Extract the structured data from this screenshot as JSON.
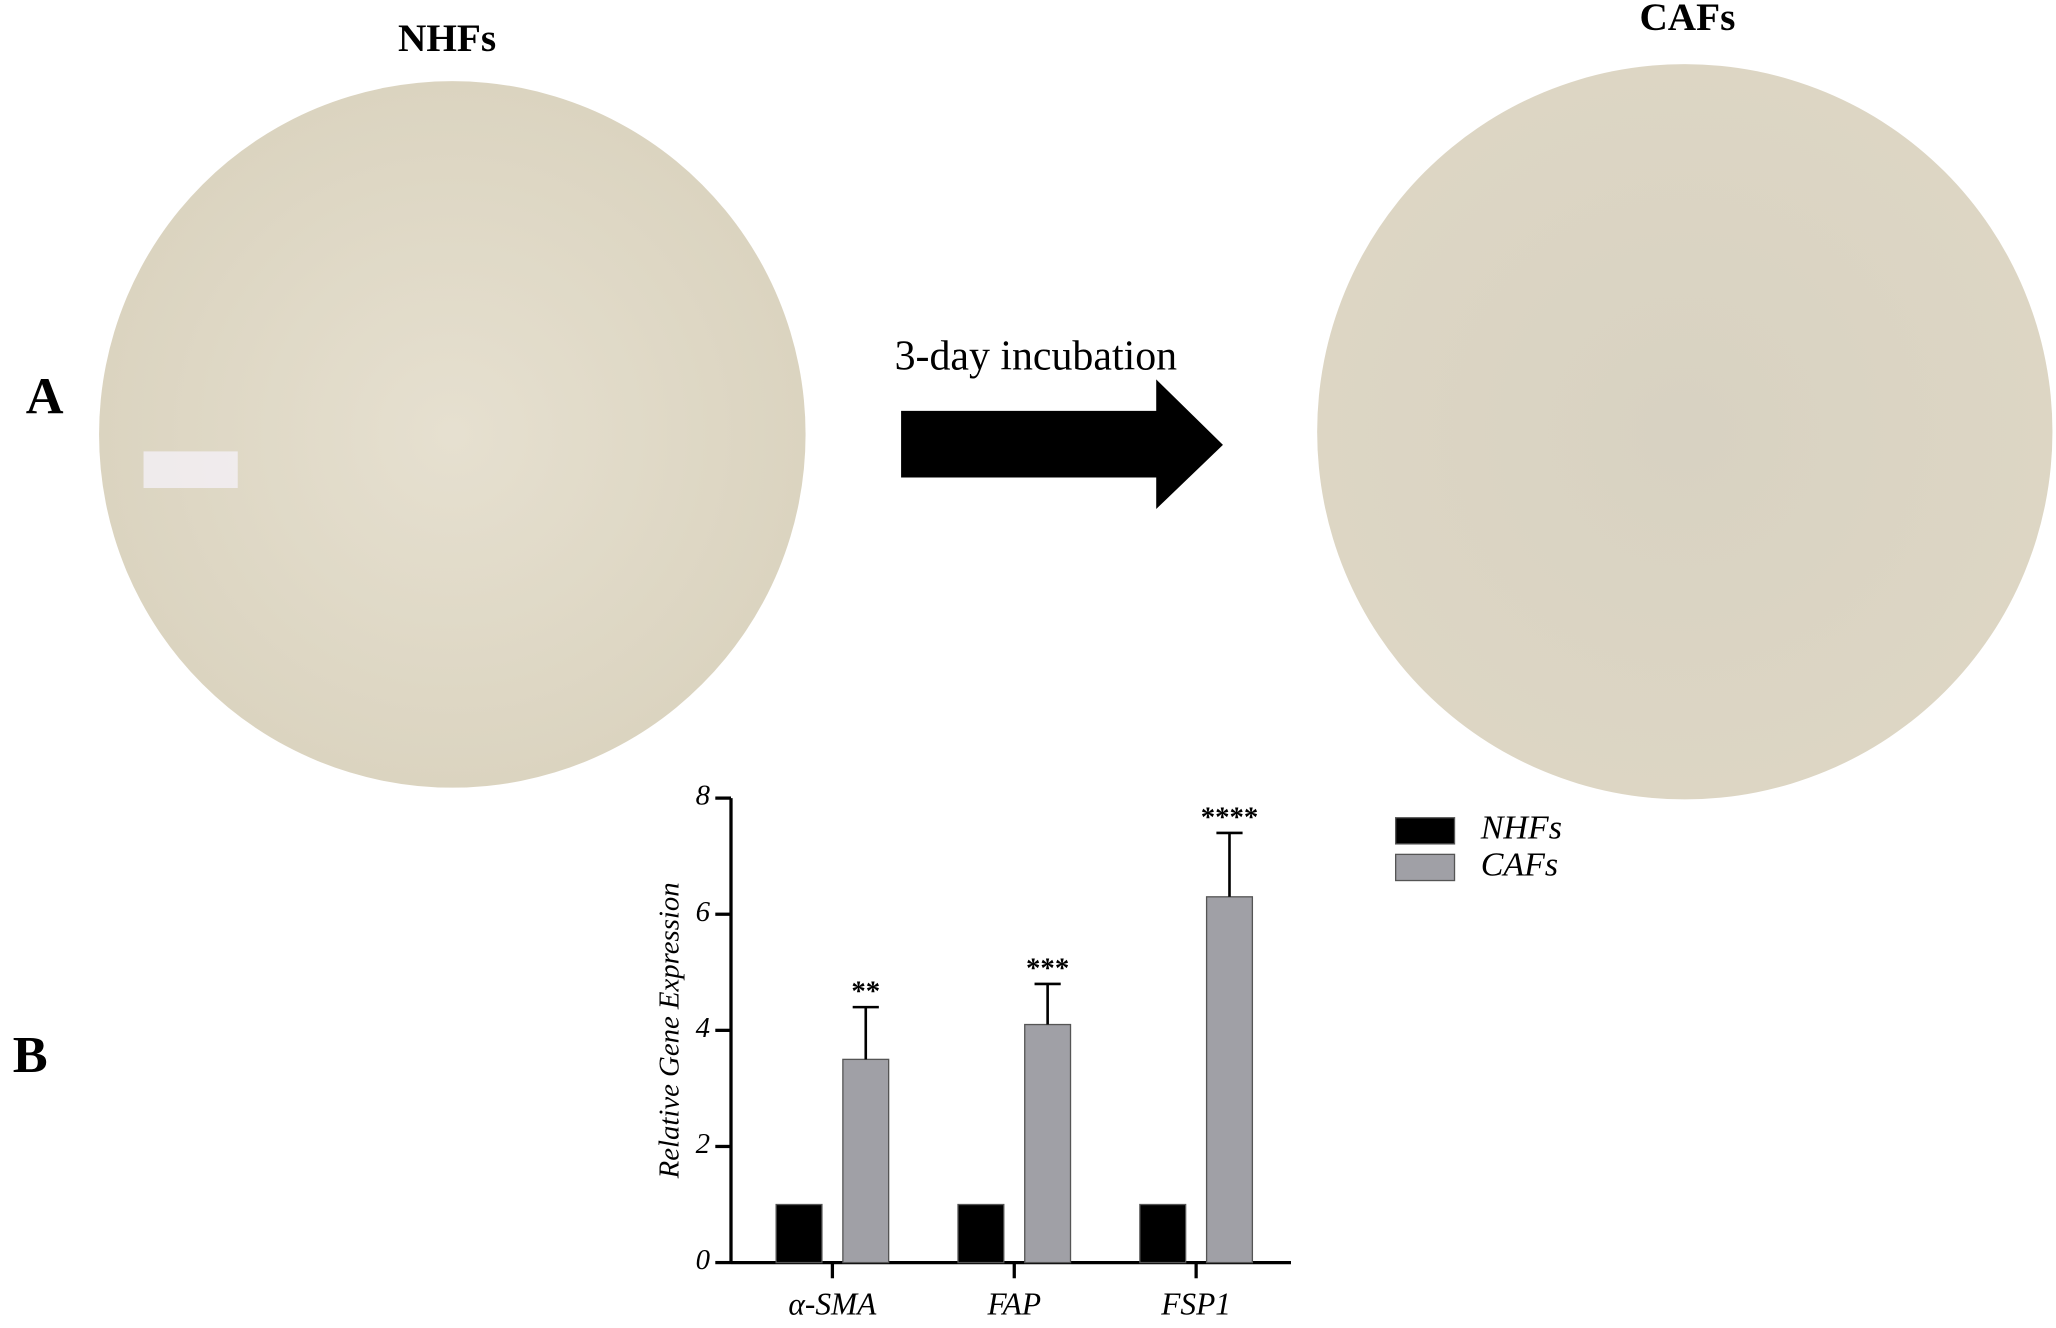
{
  "panels": {
    "a": "A",
    "b": "B"
  },
  "images": [
    {
      "title": "NHFs"
    },
    {
      "title": "CAFs"
    }
  ],
  "arrow_label": "3-day incubation",
  "chart_data": {
    "type": "bar",
    "y_label": "Relative Gene Expression",
    "categories": [
      "α-SMA",
      "FAP",
      "FSP1"
    ],
    "series": [
      {
        "name": "NHFs",
        "color": "#000000",
        "values": [
          1,
          1,
          1
        ]
      },
      {
        "name": "CAFs",
        "color": "#a0a0a6",
        "values": [
          3.5,
          4.1,
          6.3
        ],
        "errors": [
          0.9,
          0.7,
          1.1
        ],
        "significance": [
          "**",
          "***",
          "****"
        ]
      }
    ],
    "ylim": [
      0,
      8
    ],
    "yticks": [
      0,
      2,
      4,
      6,
      8
    ],
    "grid": false
  }
}
